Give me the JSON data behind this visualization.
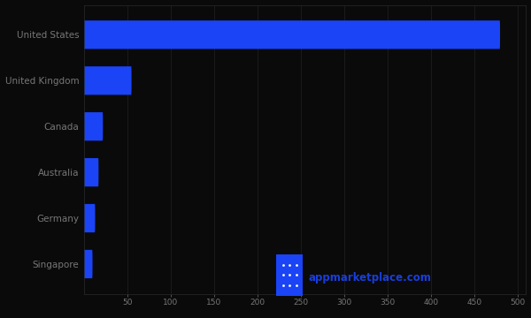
{
  "categories": [
    "United States",
    "United Kingdom",
    "Canada",
    "Australia",
    "Germany",
    "Singapore"
  ],
  "values": [
    480,
    55,
    22,
    17,
    13,
    10
  ],
  "bar_color": "#1a44f5",
  "background_color": "#0a0a0a",
  "text_color": "#777777",
  "xlim": [
    0,
    510
  ],
  "xticks": [
    50,
    100,
    150,
    200,
    250,
    300,
    350,
    400,
    450,
    500
  ],
  "watermark_text": "appmarketplace.com",
  "bar_height": 0.62,
  "figsize": [
    6.0,
    3.6
  ],
  "dpi": 100
}
